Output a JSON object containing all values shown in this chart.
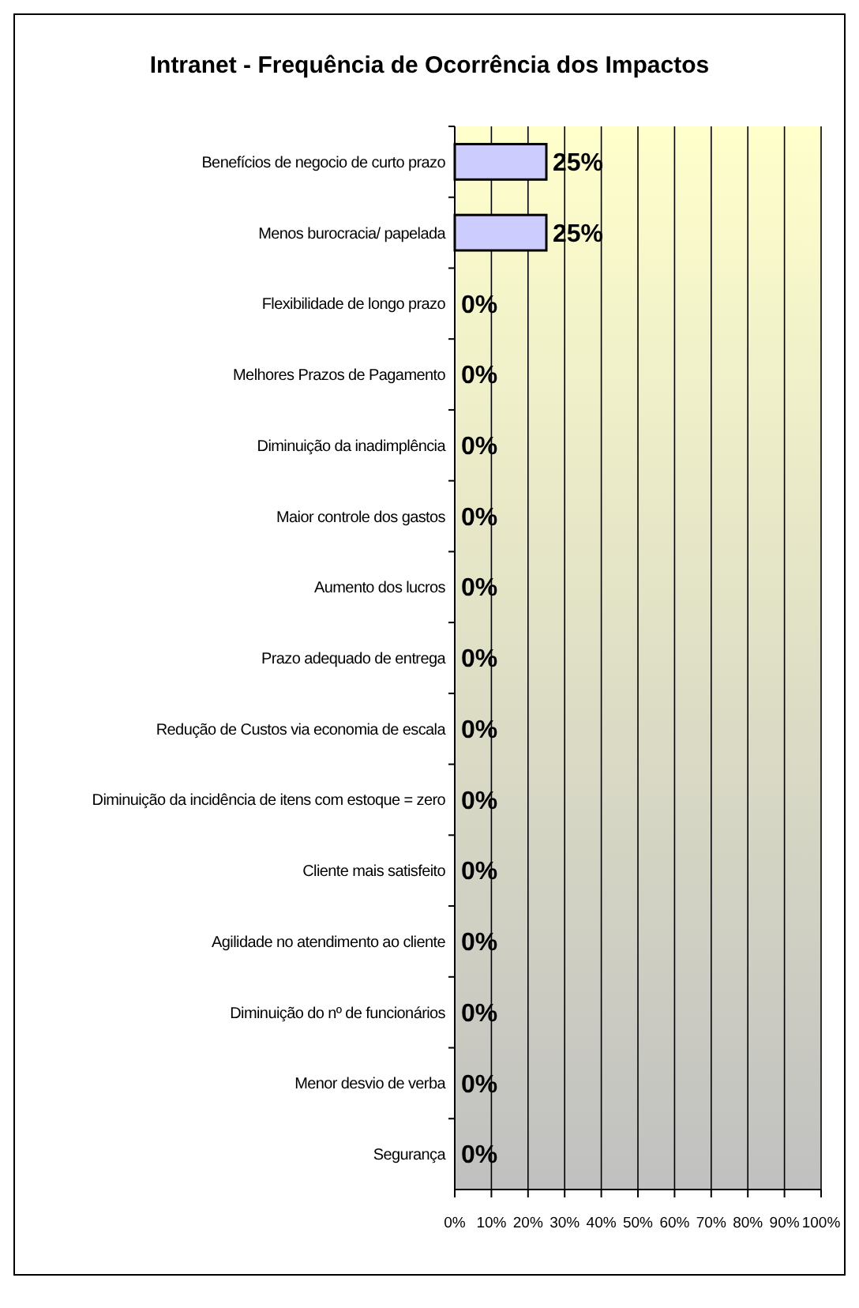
{
  "chart_data": {
    "type": "bar",
    "orientation": "horizontal",
    "title": "Intranet - Frequência de Ocorrência dos Impactos",
    "categories": [
      "Benefícios de negocio de curto prazo",
      "Menos burocracia/ papelada",
      "Flexibilidade de longo prazo",
      "Melhores Prazos de Pagamento",
      "Diminuição da inadimplência",
      "Maior controle dos gastos",
      "Aumento dos lucros",
      "Prazo adequado de entrega",
      "Redução de Custos via economia de escala",
      "Diminuição da incidência de itens com estoque = zero",
      "Cliente mais satisfeito",
      "Agilidade no atendimento ao cliente",
      "Diminuição do nº de funcionários",
      "Menor desvio de verba",
      "Segurança"
    ],
    "values": [
      25,
      25,
      0,
      0,
      0,
      0,
      0,
      0,
      0,
      0,
      0,
      0,
      0,
      0,
      0
    ],
    "value_labels": [
      "25%",
      "25%",
      "0%",
      "0%",
      "0%",
      "0%",
      "0%",
      "0%",
      "0%",
      "0%",
      "0%",
      "0%",
      "0%",
      "0%",
      "0%"
    ],
    "color": "#ccccff",
    "xlim": [
      0,
      100
    ],
    "xticks": [
      {
        "value": 0,
        "label": "0%"
      },
      {
        "value": 10,
        "label": "10%"
      },
      {
        "value": 20,
        "label": "20%"
      },
      {
        "value": 30,
        "label": "30%"
      },
      {
        "value": 40,
        "label": "40%"
      },
      {
        "value": 50,
        "label": "50%"
      },
      {
        "value": 60,
        "label": "60%"
      },
      {
        "value": 70,
        "label": "70%"
      },
      {
        "value": 80,
        "label": "80%"
      },
      {
        "value": 90,
        "label": "90%"
      },
      {
        "value": 100,
        "label": "100%"
      }
    ],
    "grid": "x"
  }
}
